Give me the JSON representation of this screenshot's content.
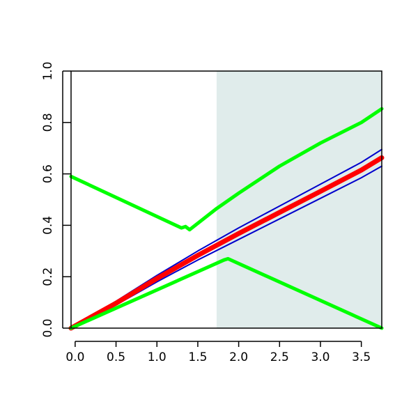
{
  "chart_data": {
    "type": "line",
    "title": "",
    "xlabel": "",
    "ylabel": "",
    "xlim": [
      -0.05,
      3.75
    ],
    "ylim": [
      0.0,
      1.0
    ],
    "x_ticks": [
      0.0,
      0.5,
      1.0,
      1.5,
      2.0,
      2.5,
      3.0,
      3.5
    ],
    "x_tick_labels": [
      "0.0",
      "0.5",
      "1.0",
      "1.5",
      "2.0",
      "2.5",
      "3.0",
      "3.5"
    ],
    "y_ticks": [
      0.0,
      0.2,
      0.4,
      0.6,
      0.8,
      1.0
    ],
    "y_tick_labels": [
      "0.0",
      "0.2",
      "0.4",
      "0.6",
      "0.8",
      "1.0"
    ],
    "grid": false,
    "legend": "none",
    "shaded_region": {
      "x_start": 1.73,
      "x_end": 3.75,
      "color": "#e0eceb"
    },
    "series": [
      {
        "role": "green-upper",
        "color": "#00ff00",
        "points": [
          [
            -0.05,
            0.59
          ],
          [
            1.3,
            0.39
          ],
          [
            1.35,
            0.395
          ],
          [
            1.4,
            0.383
          ],
          [
            1.73,
            0.465
          ],
          [
            2.0,
            0.525
          ],
          [
            2.5,
            0.63
          ],
          [
            3.0,
            0.72
          ],
          [
            3.5,
            0.8
          ],
          [
            3.75,
            0.853
          ]
        ]
      },
      {
        "role": "blue-upper",
        "color": "#0000cc",
        "points": [
          [
            -0.05,
            0.0
          ],
          [
            0.5,
            0.105
          ],
          [
            1.0,
            0.205
          ],
          [
            1.5,
            0.3
          ],
          [
            2.0,
            0.39
          ],
          [
            2.5,
            0.475
          ],
          [
            3.0,
            0.56
          ],
          [
            3.5,
            0.645
          ],
          [
            3.75,
            0.695
          ]
        ]
      },
      {
        "role": "blue-lower",
        "color": "#0000cc",
        "points": [
          [
            -0.05,
            0.0
          ],
          [
            0.5,
            0.09
          ],
          [
            1.0,
            0.18
          ],
          [
            1.5,
            0.265
          ],
          [
            2.0,
            0.345
          ],
          [
            2.5,
            0.425
          ],
          [
            3.0,
            0.505
          ],
          [
            3.5,
            0.585
          ],
          [
            3.75,
            0.63
          ]
        ]
      },
      {
        "role": "red-center",
        "color": "#ff0000",
        "points": [
          [
            -0.05,
            0.0
          ],
          [
            0.5,
            0.097
          ],
          [
            1.0,
            0.193
          ],
          [
            1.5,
            0.283
          ],
          [
            2.0,
            0.368
          ],
          [
            2.5,
            0.45
          ],
          [
            3.0,
            0.532
          ],
          [
            3.5,
            0.615
          ],
          [
            3.75,
            0.663
          ]
        ]
      },
      {
        "role": "green-lower",
        "color": "#00ff00",
        "points": [
          [
            -0.05,
            0.0
          ],
          [
            1.82,
            0.265
          ],
          [
            1.87,
            0.27
          ],
          [
            3.75,
            0.0
          ]
        ]
      }
    ]
  }
}
